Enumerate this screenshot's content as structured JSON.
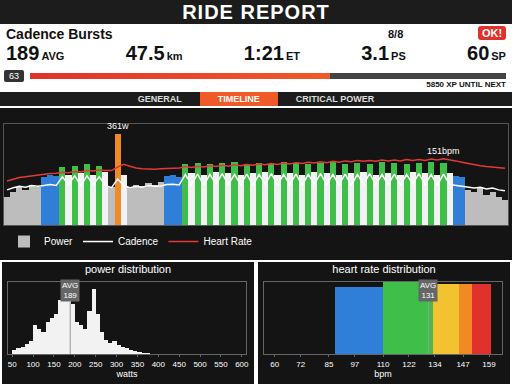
{
  "header": {
    "title": "RIDE REPORT",
    "workout": "Cadence Bursts",
    "badge": "OK!",
    "stars": "8/8",
    "stats": [
      {
        "value": "189",
        "unit": "AVG"
      },
      {
        "value": "47.5",
        "unit": "km"
      },
      {
        "value": "1:21",
        "unit": "ET"
      },
      {
        "value": "3.1",
        "unit": "PS"
      },
      {
        "value": "60",
        "unit": "SP"
      }
    ],
    "level": "63",
    "xp": "5850 XP UNTIL NEXT",
    "xp_progress": 0.63
  },
  "tabs": [
    "GENERAL",
    "TIMELINE",
    "CRITICAL POWER"
  ],
  "active_tab": "TIMELINE",
  "chart_data": [
    {
      "type": "combo",
      "x": [
        0,
        1,
        2,
        3,
        4,
        5,
        6,
        7,
        8,
        9,
        10,
        11,
        12,
        13,
        14,
        15,
        16,
        17,
        18,
        19,
        20,
        21,
        22,
        23,
        24,
        25,
        26,
        27,
        28,
        29,
        30,
        31,
        32,
        33,
        34,
        35,
        36,
        37,
        38,
        39,
        40,
        41,
        42,
        43,
        44,
        45,
        46,
        47,
        48,
        49,
        50,
        51,
        52,
        53,
        54,
        55,
        56,
        57,
        58,
        59,
        60,
        61,
        62,
        63,
        64,
        65,
        66,
        67,
        68,
        69,
        70,
        71,
        72,
        73,
        74,
        75,
        76,
        77,
        78,
        79,
        80,
        81
      ],
      "xlim": [
        -0.5,
        81.5
      ],
      "ylim": [
        0,
        400
      ],
      "y2lim": [
        0,
        230
      ],
      "tick_labels": false,
      "legend": "bottom left",
      "series": [
        {
          "name": "Power",
          "type": "bar",
          "values": [
            110,
            130,
            150,
            140,
            160,
            150,
            190,
            200,
            195,
            230,
            200,
            235,
            205,
            240,
            200,
            235,
            210,
            150,
            361,
            200,
            150,
            160,
            155,
            165,
            160,
            170,
            195,
            200,
            190,
            240,
            205,
            245,
            200,
            240,
            210,
            245,
            205,
            250,
            200,
            240,
            205,
            245,
            210,
            240,
            200,
            250,
            205,
            245,
            200,
            240,
            210,
            245,
            205,
            250,
            200,
            240,
            205,
            245,
            210,
            240,
            200,
            250,
            205,
            245,
            200,
            240,
            210,
            245,
            205,
            250,
            200,
            245,
            205,
            195,
            190,
            140,
            130,
            150,
            120,
            130,
            110,
            100
          ],
          "colors": [
            "#bdbdbd",
            "#bdbdbd",
            "#bdbdbd",
            "#bdbdbd",
            "#bdbdbd",
            "#bdbdbd",
            "#2f7fd8",
            "#2f7fd8",
            "#2f7fd8",
            "#3fbf4a",
            "#f2f2f2",
            "#3fbf4a",
            "#f2f2f2",
            "#3fbf4a",
            "#f2f2f2",
            "#3fbf4a",
            "#f2f2f2",
            "#bdbdbd",
            "#f08a24",
            "#f2f2f2",
            "#bdbdbd",
            "#bdbdbd",
            "#bdbdbd",
            "#bdbdbd",
            "#bdbdbd",
            "#bdbdbd",
            "#2f7fd8",
            "#2f7fd8",
            "#2f7fd8",
            "#3fbf4a",
            "#f2f2f2",
            "#3fbf4a",
            "#f2f2f2",
            "#3fbf4a",
            "#f2f2f2",
            "#3fbf4a",
            "#f2f2f2",
            "#3fbf4a",
            "#f2f2f2",
            "#3fbf4a",
            "#f2f2f2",
            "#3fbf4a",
            "#f2f2f2",
            "#3fbf4a",
            "#f2f2f2",
            "#3fbf4a",
            "#f2f2f2",
            "#3fbf4a",
            "#f2f2f2",
            "#3fbf4a",
            "#f2f2f2",
            "#3fbf4a",
            "#f2f2f2",
            "#3fbf4a",
            "#f2f2f2",
            "#3fbf4a",
            "#f2f2f2",
            "#3fbf4a",
            "#f2f2f2",
            "#3fbf4a",
            "#f2f2f2",
            "#3fbf4a",
            "#f2f2f2",
            "#3fbf4a",
            "#f2f2f2",
            "#3fbf4a",
            "#f2f2f2",
            "#3fbf4a",
            "#f2f2f2",
            "#3fbf4a",
            "#f2f2f2",
            "#3fbf4a",
            "#f2f2f2",
            "#2f7fd8",
            "#2f7fd8",
            "#bdbdbd",
            "#bdbdbd",
            "#bdbdbd",
            "#bdbdbd",
            "#bdbdbd",
            "#bdbdbd",
            "#bdbdbd"
          ]
        },
        {
          "name": "Cadence",
          "type": "line",
          "axis": "y2",
          "color": "#ffffff",
          "values": [
            80,
            85,
            88,
            86,
            90,
            88,
            90,
            92,
            90,
            110,
            92,
            112,
            90,
            112,
            92,
            110,
            90,
            85,
            105,
            90,
            85,
            88,
            86,
            90,
            88,
            89,
            92,
            93,
            91,
            115,
            92,
            116,
            91,
            115,
            93,
            117,
            92,
            115,
            92,
            116,
            91,
            115,
            93,
            117,
            92,
            115,
            92,
            116,
            91,
            115,
            93,
            117,
            92,
            115,
            92,
            116,
            91,
            115,
            93,
            117,
            92,
            115,
            92,
            116,
            91,
            115,
            93,
            117,
            92,
            115,
            91,
            116,
            92,
            90,
            88,
            85,
            84,
            86,
            82,
            84,
            80,
            78
          ]
        },
        {
          "name": "Heart Rate",
          "type": "line",
          "axis": "y2",
          "color": "#e53935",
          "values": [
            100,
            104,
            108,
            110,
            112,
            113,
            115,
            117,
            118,
            120,
            119,
            122,
            121,
            124,
            123,
            125,
            124,
            124,
            132,
            138,
            134,
            130,
            128,
            127,
            127,
            128,
            129,
            130,
            130,
            133,
            131,
            134,
            132,
            135,
            133,
            136,
            134,
            137,
            135,
            138,
            136,
            139,
            137,
            140,
            138,
            141,
            139,
            142,
            140,
            143,
            141,
            144,
            142,
            145,
            143,
            146,
            144,
            147,
            145,
            147,
            145,
            148,
            146,
            148,
            146,
            149,
            147,
            149,
            147,
            150,
            148,
            151,
            149,
            146,
            143,
            140,
            137,
            135,
            133,
            132,
            130,
            129
          ]
        }
      ],
      "annotations": [
        {
          "text": "361w",
          "x": 18,
          "y": 361
        },
        {
          "text": "151bpm",
          "x": 71,
          "y": 151,
          "axis": "y2"
        }
      ]
    },
    {
      "type": "histogram",
      "title": "power distribution",
      "x_label": "watts",
      "bins": [
        50,
        60,
        70,
        80,
        90,
        100,
        110,
        120,
        130,
        140,
        150,
        160,
        170,
        180,
        190,
        200,
        210,
        220,
        230,
        240,
        250,
        260,
        270,
        280,
        290,
        300,
        310,
        320,
        330,
        340,
        350,
        360,
        370,
        380
      ],
      "counts": [
        5,
        8,
        10,
        14,
        18,
        40,
        35,
        30,
        45,
        50,
        55,
        75,
        80,
        95,
        70,
        45,
        40,
        35,
        60,
        90,
        55,
        30,
        20,
        15,
        18,
        12,
        10,
        8,
        6,
        4,
        3,
        2,
        1
      ],
      "color": "#f2f2f2",
      "xlim": [
        40,
        610
      ],
      "xticks": [
        50,
        100,
        150,
        200,
        250,
        300,
        350,
        400,
        450,
        500,
        550,
        600
      ],
      "ylim": [
        0,
        100
      ],
      "tick_labels": "x",
      "average": {
        "label": "AVG",
        "value": 189
      }
    },
    {
      "type": "histogram",
      "title": "heart rate distribution",
      "x_label": "bpm",
      "bins": [
        88,
        110,
        133,
        145,
        151,
        160
      ],
      "counts": [
        28,
        30,
        29,
        29,
        29
      ],
      "colors": [
        "#2f7fd8",
        "#3fbf4a",
        "#f2c230",
        "#f08a24",
        "#e0312b"
      ],
      "xlim": [
        55,
        165
      ],
      "xticks": [
        60,
        72,
        85,
        97,
        110,
        122,
        134,
        147,
        159
      ],
      "ylim": [
        0,
        30
      ],
      "tick_labels": "x",
      "average": {
        "label": "AVG",
        "value": 131
      }
    }
  ]
}
